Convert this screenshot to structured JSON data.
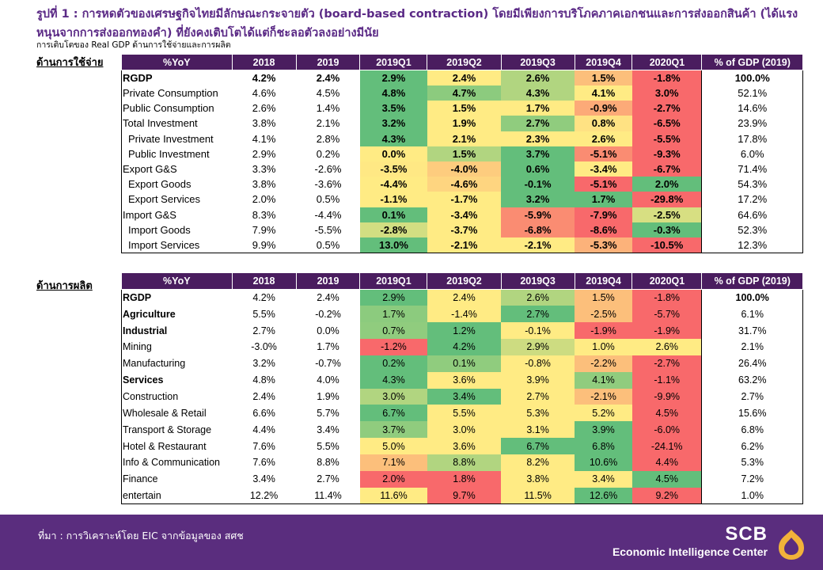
{
  "title": "รูปที่ 1 : การหดตัวของเศรษฐกิจไทยมีลักษณะกระจายตัว (board-based contraction) โดยมีเพียงการบริโภคภาคเอกชนและการส่งออกสินค้า (ได้แรงหนุนจากการส่งออกทองคำ) ที่ยังคงเติบโตได้แต่ก็ชะลอตัวลงอย่างมีนัย",
  "subtitle": "การเติบโตของ Real GDP ด้านการใช้จ่ายและการผลิต",
  "sections": {
    "expenditure": "ด้านการใช้จ่าย",
    "production": "ด้านการผลิต"
  },
  "headers": [
    "%YoY",
    "2018",
    "2019",
    "2019Q1",
    "2019Q2",
    "2019Q3",
    "2019Q4",
    "2020Q1",
    "% of GDP (2019)"
  ],
  "expenditure_rows": [
    {
      "label": "RGDP",
      "bold": true,
      "sub": false,
      "y2018": "4.2%",
      "y2019": "2.4%",
      "q": [
        "2.9%",
        "2.4%",
        "2.6%",
        "1.5%",
        "-1.8%"
      ],
      "pct": "100.0%"
    },
    {
      "label": "Private Consumption",
      "bold": false,
      "sub": false,
      "y2018": "4.6%",
      "y2019": "4.5%",
      "q": [
        "4.8%",
        "4.7%",
        "4.3%",
        "4.1%",
        "3.0%"
      ],
      "pct": "52.1%"
    },
    {
      "label": "Public Consumption",
      "bold": false,
      "sub": false,
      "y2018": "2.6%",
      "y2019": "1.4%",
      "q": [
        "3.5%",
        "1.5%",
        "1.7%",
        "-0.9%",
        "-2.7%"
      ],
      "pct": "14.6%"
    },
    {
      "label": "Total Investment",
      "bold": false,
      "sub": false,
      "y2018": "3.8%",
      "y2019": "2.1%",
      "q": [
        "3.2%",
        "1.9%",
        "2.7%",
        "0.8%",
        "-6.5%"
      ],
      "pct": "23.9%"
    },
    {
      "label": "Private Investment",
      "bold": false,
      "sub": true,
      "y2018": "4.1%",
      "y2019": "2.8%",
      "q": [
        "4.3%",
        "2.1%",
        "2.3%",
        "2.6%",
        "-5.5%"
      ],
      "pct": "17.8%"
    },
    {
      "label": "Public Investment",
      "bold": false,
      "sub": true,
      "y2018": "2.9%",
      "y2019": "0.2%",
      "q": [
        "0.0%",
        "1.5%",
        "3.7%",
        "-5.1%",
        "-9.3%"
      ],
      "pct": "6.0%"
    },
    {
      "label": "Export G&S",
      "bold": false,
      "sub": false,
      "y2018": "3.3%",
      "y2019": "-2.6%",
      "q": [
        "-3.5%",
        "-4.0%",
        "0.6%",
        "-3.4%",
        "-6.7%"
      ],
      "pct": "71.4%"
    },
    {
      "label": "Export Goods",
      "bold": false,
      "sub": true,
      "y2018": "3.8%",
      "y2019": "-3.6%",
      "q": [
        "-4.4%",
        "-4.6%",
        "-0.1%",
        "-5.1%",
        "2.0%"
      ],
      "pct": "54.3%"
    },
    {
      "label": "Export Services",
      "bold": false,
      "sub": true,
      "y2018": "2.0%",
      "y2019": "0.5%",
      "q": [
        "-1.1%",
        "-1.7%",
        "3.2%",
        "1.7%",
        "-29.8%"
      ],
      "pct": "17.2%"
    },
    {
      "label": "Import G&S",
      "bold": false,
      "sub": false,
      "y2018": "8.3%",
      "y2019": "-4.4%",
      "q": [
        "0.1%",
        "-3.4%",
        "-5.9%",
        "-7.9%",
        "-2.5%"
      ],
      "pct": "64.6%"
    },
    {
      "label": "Import Goods",
      "bold": false,
      "sub": true,
      "y2018": "7.9%",
      "y2019": "-5.5%",
      "q": [
        "-2.8%",
        "-3.7%",
        "-6.8%",
        "-8.6%",
        "-0.3%"
      ],
      "pct": "52.3%"
    },
    {
      "label": "Import Services",
      "bold": false,
      "sub": true,
      "y2018": "9.9%",
      "y2019": "0.5%",
      "q": [
        "13.0%",
        "-2.1%",
        "-2.1%",
        "-5.3%",
        "-10.5%"
      ],
      "pct": "12.3%"
    }
  ],
  "expenditure_colors": [
    [
      "#63be7b",
      "#ffeb84",
      "#b1d580",
      "#fcbf7b",
      "#f8696b"
    ],
    [
      "#63be7b",
      "#8ccb7e",
      "#b1d580",
      "#ffeb84",
      "#f8696b"
    ],
    [
      "#63be7b",
      "#ffeb84",
      "#ffeb84",
      "#fcaa78",
      "#f8696b"
    ],
    [
      "#63be7b",
      "#ffeb84",
      "#90cc7e",
      "#ffe283",
      "#f8696b"
    ],
    [
      "#63be7b",
      "#ffeb84",
      "#ffeb84",
      "#ffeb84",
      "#f8696b"
    ],
    [
      "#ffeb84",
      "#b1d580",
      "#63be7b",
      "#fa8c72",
      "#f8696b"
    ],
    [
      "#ffe884",
      "#fdcc7e",
      "#63be7b",
      "#ffeb84",
      "#f8696b"
    ],
    [
      "#ffeb84",
      "#fed580",
      "#63be7b",
      "#f8696b",
      "#63be7b"
    ],
    [
      "#ffeb84",
      "#ffeb84",
      "#63be7b",
      "#63be7b",
      "#f8696b"
    ],
    [
      "#63be7b",
      "#ffeb84",
      "#fa8c72",
      "#f8696b",
      "#d7df82"
    ],
    [
      "#d2de82",
      "#ffeb84",
      "#fa8c72",
      "#f8696b",
      "#63be7b"
    ],
    [
      "#63be7b",
      "#ffeb84",
      "#ffeb84",
      "#fcb27a",
      "#f8696b"
    ]
  ],
  "production_rows": [
    {
      "label": "RGDP",
      "bold": true,
      "y2018": "4.2%",
      "y2019": "2.4%",
      "q": [
        "2.9%",
        "2.4%",
        "2.6%",
        "1.5%",
        "-1.8%"
      ],
      "pct": "100.0%"
    },
    {
      "label": "Agriculture",
      "bold": true,
      "y2018": "5.5%",
      "y2019": "-0.2%",
      "q": [
        "1.7%",
        "-1.4%",
        "2.7%",
        "-2.5%",
        "-5.7%"
      ],
      "pct": "6.1%"
    },
    {
      "label": "Industrial",
      "bold": true,
      "y2018": "2.7%",
      "y2019": "0.0%",
      "q": [
        "0.7%",
        "1.2%",
        "-0.1%",
        "-1.9%",
        "-1.9%"
      ],
      "pct": "31.7%"
    },
    {
      "label": "Mining",
      "bold": false,
      "y2018": "-3.0%",
      "y2019": "1.7%",
      "q": [
        "-1.2%",
        "4.2%",
        "2.9%",
        "1.0%",
        "2.6%"
      ],
      "pct": "2.1%"
    },
    {
      "label": "Manufacturing",
      "bold": false,
      "y2018": "3.2%",
      "y2019": "-0.7%",
      "q": [
        "0.2%",
        "0.1%",
        "-0.8%",
        "-2.2%",
        "-2.7%"
      ],
      "pct": "26.4%"
    },
    {
      "label": "Services",
      "bold": true,
      "y2018": "4.8%",
      "y2019": "4.0%",
      "q": [
        "4.3%",
        "3.6%",
        "3.9%",
        "4.1%",
        "-1.1%"
      ],
      "pct": "63.2%"
    },
    {
      "label": "Construction",
      "bold": false,
      "y2018": "2.4%",
      "y2019": "1.9%",
      "q": [
        "3.0%",
        "3.4%",
        "2.7%",
        "-2.1%",
        "-9.9%"
      ],
      "pct": "2.7%"
    },
    {
      "label": "Wholesale & Retail",
      "bold": false,
      "y2018": "6.6%",
      "y2019": "5.7%",
      "q": [
        "6.7%",
        "5.5%",
        "5.3%",
        "5.2%",
        "4.5%"
      ],
      "pct": "15.6%"
    },
    {
      "label": "Transport & Storage",
      "bold": false,
      "y2018": "4.4%",
      "y2019": "3.4%",
      "q": [
        "3.7%",
        "3.0%",
        "3.1%",
        "3.9%",
        "-6.0%"
      ],
      "pct": "6.8%"
    },
    {
      "label": "Hotel & Restaurant",
      "bold": false,
      "y2018": "7.6%",
      "y2019": "5.5%",
      "q": [
        "5.0%",
        "3.6%",
        "6.7%",
        "6.8%",
        "-24.1%"
      ],
      "pct": "6.2%"
    },
    {
      "label": "Info & Communication",
      "bold": false,
      "y2018": "7.6%",
      "y2019": "8.8%",
      "q": [
        "7.1%",
        "8.8%",
        "8.2%",
        "10.6%",
        "4.4%"
      ],
      "pct": "5.3%"
    },
    {
      "label": "Finance",
      "bold": false,
      "y2018": "3.4%",
      "y2019": "2.7%",
      "q": [
        "2.0%",
        "1.8%",
        "3.8%",
        "3.4%",
        "4.5%"
      ],
      "pct": "7.2%"
    },
    {
      "label": "entertain",
      "bold": false,
      "y2018": "12.2%",
      "y2019": "11.4%",
      "q": [
        "11.6%",
        "9.7%",
        "11.5%",
        "12.6%",
        "9.2%"
      ],
      "pct": "1.0%"
    }
  ],
  "production_colors": [
    [
      "#63be7b",
      "#ffeb84",
      "#b1d580",
      "#fcbf7b",
      "#f8696b"
    ],
    [
      "#8ccb7e",
      "#ffeb84",
      "#63be7b",
      "#fcbf7b",
      "#f8696b"
    ],
    [
      "#90cc7e",
      "#63be7b",
      "#ffeb84",
      "#f8696b",
      "#f8696b"
    ],
    [
      "#f8696b",
      "#63be7b",
      "#cddc81",
      "#ffeb84",
      "#ffeb84"
    ],
    [
      "#63be7b",
      "#90cc7e",
      "#ffeb84",
      "#fcbf7b",
      "#f8696b"
    ],
    [
      "#63be7b",
      "#ffeb84",
      "#ffeb84",
      "#90cc7e",
      "#f8696b"
    ],
    [
      "#b1d580",
      "#63be7b",
      "#ffeb84",
      "#fcbf7b",
      "#f8696b"
    ],
    [
      "#63be7b",
      "#ffeb84",
      "#ffeb84",
      "#ffeb84",
      "#f8696b"
    ],
    [
      "#90cc7e",
      "#ffeb84",
      "#ffeb84",
      "#63be7b",
      "#f8696b"
    ],
    [
      "#ffeb84",
      "#ffeb84",
      "#63be7b",
      "#63be7b",
      "#f8696b"
    ],
    [
      "#fcbf7b",
      "#b1d580",
      "#ffeb84",
      "#63be7b",
      "#f8696b"
    ],
    [
      "#f8696b",
      "#f8696b",
      "#ffeb84",
      "#ffeb84",
      "#63be7b"
    ],
    [
      "#ffeb84",
      "#f8696b",
      "#ffeb84",
      "#63be7b",
      "#f8696b"
    ]
  ],
  "footer": {
    "source": "ที่มา : การวิเคราะห์โดย EIC จากข้อมูลของ สศช",
    "brand_name": "SCB",
    "brand_sub": "Economic Intelligence Center",
    "bg_color": "#5a2d7e",
    "logo_color": "#f2b23a"
  }
}
